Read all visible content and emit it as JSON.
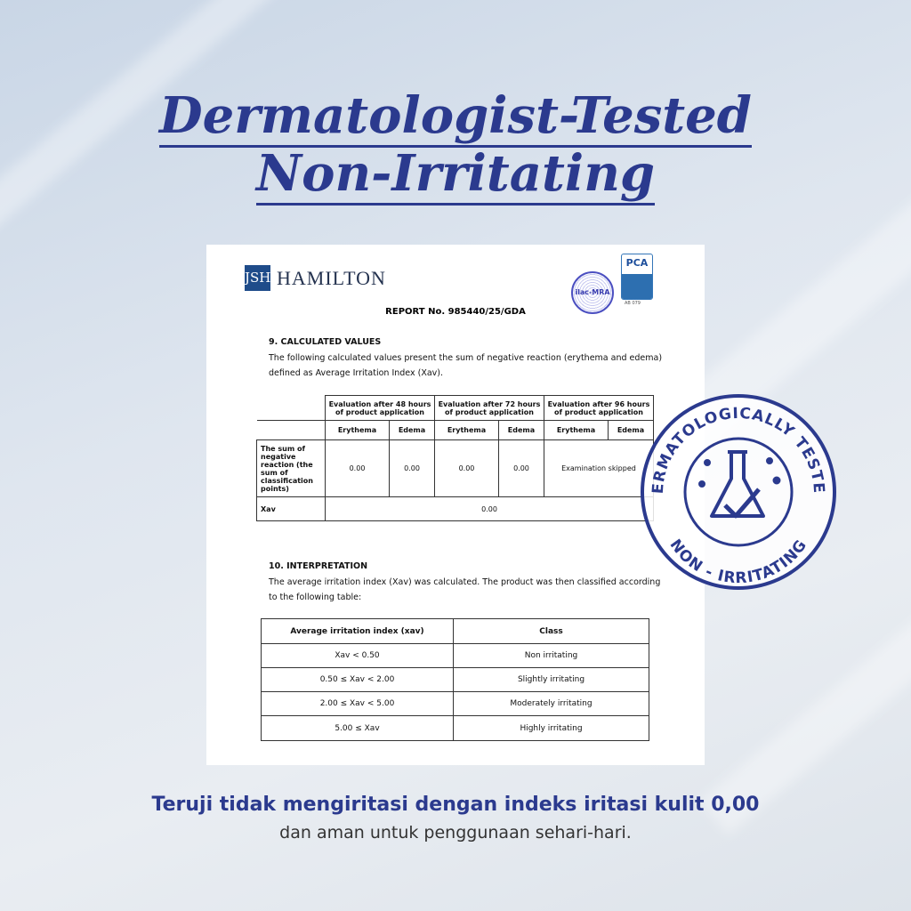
{
  "headline": {
    "line1": "Dermatologist-Tested",
    "line2": "Non-Irritating"
  },
  "document": {
    "logo_mark": "JSH",
    "brand": "HAMILTON",
    "ilac": "ilac-MRA",
    "pca": "PCA",
    "pca_code": "AB 079",
    "report": "REPORT No. 985440/25/GDA",
    "section9": {
      "heading": "9.  CALCULATED VALUES",
      "text": "The following calculated values present the sum of negative reaction (erythema and edema) defined as Average Irritation Index (Xav)."
    },
    "table1": {
      "groups": [
        "Evaluation after 48 hours of product application",
        "Evaluation after 72 hours of product application",
        "Evaluation after 96 hours of product application"
      ],
      "subheaders": [
        "Erythema",
        "Edema",
        "Erythema",
        "Edema",
        "Erythema",
        "Edema"
      ],
      "row_label": "The sum of negative reaction (the sum of classification points)",
      "values": [
        "0.00",
        "0.00",
        "0.00",
        "0.00"
      ],
      "skipped": "Examination skipped",
      "xav_label": "Xav",
      "xav_value": "0.00"
    },
    "section10": {
      "heading": "10.  INTERPRETATION",
      "text": "The average irritation index (Xav) was calculated. The product was then classified according to the following table:"
    },
    "table2": {
      "headers": [
        "Average irritation index (xav)",
        "Class"
      ],
      "rows": [
        [
          "Xav < 0.50",
          "Non irritating"
        ],
        [
          "0.50 ≤ Xav < 2.00",
          "Slightly irritating"
        ],
        [
          "2.00 ≤ Xav < 5.00",
          "Moderately irritating"
        ],
        [
          "5.00 ≤ Xav",
          "Highly irritating"
        ]
      ]
    }
  },
  "stamp": {
    "top_text": "DERMATOLOGICALLY TESTED",
    "bottom_text": "NON - IRRITATING",
    "color": "#2b3a8e"
  },
  "footer": {
    "line1": "Teruji tidak mengiritasi dengan indeks iritasi kulit 0,00",
    "line2": "dan aman untuk penggunaan sehari-hari."
  }
}
